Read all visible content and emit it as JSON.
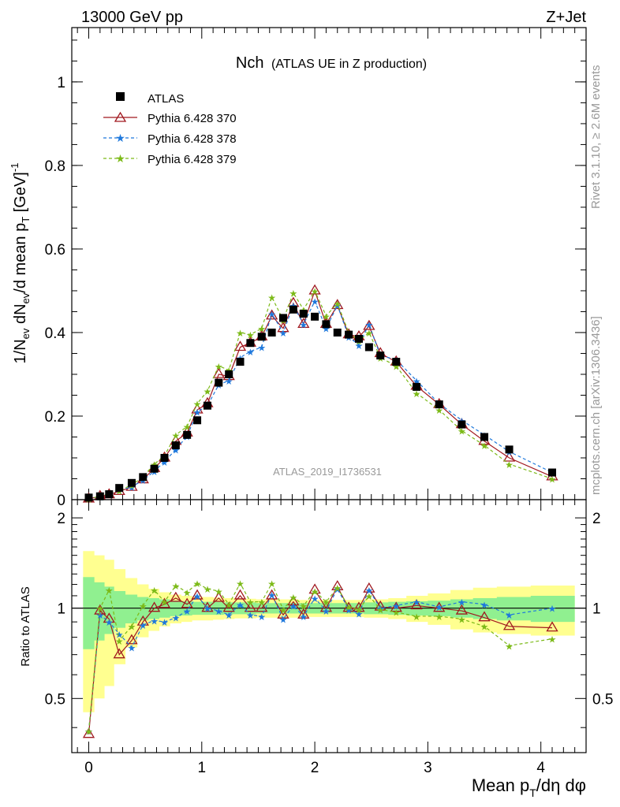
{
  "header": {
    "left": "13000 GeV pp",
    "right": "Z+Jet"
  },
  "side_labels": {
    "rivet": "Rivet 3.1.10, ≥ 2.6M events",
    "mcplots": "mcplots.cern.ch [arXiv:1306.3436]"
  },
  "colors": {
    "atlas": "#000000",
    "p370": "#a0181f",
    "p378": "#1e78dc",
    "p379": "#7cba18",
    "band_inner": "#90f090",
    "band_outer": "#ffff90",
    "watermark": "#999999"
  },
  "chart_data": [
    {
      "type": "scatter",
      "title": "Nch",
      "subtitle": "(ATLAS UE in Z production)",
      "analysis_label": "ATLAS_2019_I1736531",
      "ylabel": "1/N_ev dN_ev/d mean p_T [GeV]^-1",
      "xlim": [
        -0.15,
        4.4
      ],
      "ylim": [
        0,
        1.13
      ],
      "y_ticks": [
        "0",
        "0.2",
        "0.4",
        "0.6",
        "0.8",
        "1"
      ],
      "legend_position": "top-left",
      "x": [
        0.0,
        0.1,
        0.18,
        0.27,
        0.38,
        0.48,
        0.58,
        0.67,
        0.77,
        0.87,
        0.96,
        1.05,
        1.15,
        1.24,
        1.34,
        1.43,
        1.53,
        1.62,
        1.72,
        1.81,
        1.9,
        2.0,
        2.1,
        2.2,
        2.3,
        2.39,
        2.48,
        2.58,
        2.72,
        2.9,
        3.1,
        3.3,
        3.5,
        3.72,
        4.1
      ],
      "series": [
        {
          "name": "ATLAS",
          "marker": "square",
          "values": [
            0.005,
            0.008,
            0.013,
            0.028,
            0.04,
            0.054,
            0.074,
            0.1,
            0.13,
            0.155,
            0.19,
            0.225,
            0.28,
            0.3,
            0.33,
            0.375,
            0.39,
            0.4,
            0.435,
            0.455,
            0.445,
            0.438,
            0.42,
            0.4,
            0.395,
            0.385,
            0.365,
            0.345,
            0.33,
            0.27,
            0.228,
            0.18,
            0.15,
            0.12,
            0.065
          ]
        },
        {
          "name": "Pythia 6.428 370",
          "marker": "triangle",
          "values": [
            0.002,
            0.008,
            0.012,
            0.02,
            0.03,
            0.048,
            0.075,
            0.1,
            0.14,
            0.16,
            0.215,
            0.23,
            0.3,
            0.295,
            0.365,
            0.375,
            0.39,
            0.44,
            0.41,
            0.47,
            0.42,
            0.5,
            0.42,
            0.465,
            0.395,
            0.39,
            0.415,
            0.35,
            0.33,
            0.272,
            0.228,
            0.18,
            0.14,
            0.1,
            0.055
          ]
        },
        {
          "name": "Pythia 6.428 378",
          "marker": "star",
          "values": [
            0.002,
            0.007,
            0.012,
            0.023,
            0.03,
            0.047,
            0.068,
            0.091,
            0.12,
            0.152,
            0.21,
            0.225,
            0.275,
            0.285,
            0.34,
            0.355,
            0.365,
            0.445,
            0.4,
            0.465,
            0.42,
            0.475,
            0.41,
            0.465,
            0.39,
            0.37,
            0.42,
            0.345,
            0.335,
            0.285,
            0.23,
            0.19,
            0.155,
            0.115,
            0.065
          ]
        },
        {
          "name": "Pythia 6.428 379",
          "marker": "star",
          "values": [
            0.002,
            0.008,
            0.015,
            0.022,
            0.035,
            0.055,
            0.085,
            0.105,
            0.155,
            0.175,
            0.23,
            0.26,
            0.32,
            0.31,
            0.4,
            0.395,
            0.41,
            0.485,
            0.43,
            0.495,
            0.455,
            0.5,
            0.44,
            0.47,
            0.4,
            0.38,
            0.4,
            0.34,
            0.32,
            0.255,
            0.215,
            0.165,
            0.13,
            0.085,
            0.05
          ]
        }
      ]
    },
    {
      "type": "line",
      "ylabel": "Ratio to ATLAS",
      "xlabel": "Mean p_T/dη dφ",
      "xlim": [
        -0.15,
        4.4
      ],
      "ylim": [
        0.33,
        2.3
      ],
      "x_ticks": [
        "0",
        "1",
        "2",
        "3",
        "4"
      ],
      "y_ticks": [
        "0.5",
        "1",
        "2"
      ],
      "reference_line": 1,
      "x": [
        0.0,
        0.1,
        0.18,
        0.27,
        0.38,
        0.48,
        0.58,
        0.67,
        0.77,
        0.87,
        0.96,
        1.05,
        1.15,
        1.24,
        1.34,
        1.43,
        1.53,
        1.62,
        1.72,
        1.81,
        1.9,
        2.0,
        2.1,
        2.2,
        2.3,
        2.39,
        2.48,
        2.58,
        2.72,
        2.9,
        3.1,
        3.3,
        3.5,
        3.72,
        4.1
      ],
      "bands": {
        "inner_halfwidth": [
          0.27,
          0.22,
          0.18,
          0.14,
          0.11,
          0.09,
          0.08,
          0.07,
          0.06,
          0.055,
          0.05,
          0.05,
          0.05,
          0.045,
          0.045,
          0.045,
          0.04,
          0.04,
          0.04,
          0.04,
          0.04,
          0.04,
          0.04,
          0.04,
          0.04,
          0.04,
          0.045,
          0.045,
          0.05,
          0.055,
          0.06,
          0.07,
          0.08,
          0.09,
          0.1
        ],
        "outer_halfwidth": [
          0.55,
          0.5,
          0.45,
          0.35,
          0.26,
          0.2,
          0.16,
          0.13,
          0.11,
          0.1,
          0.09,
          0.09,
          0.085,
          0.08,
          0.075,
          0.075,
          0.07,
          0.07,
          0.07,
          0.07,
          0.065,
          0.065,
          0.065,
          0.065,
          0.065,
          0.065,
          0.07,
          0.07,
          0.08,
          0.1,
          0.12,
          0.15,
          0.17,
          0.18,
          0.19
        ]
      },
      "series": [
        {
          "name": "Pythia 6.428 370",
          "values": [
            0.38,
            0.98,
            0.92,
            0.7,
            0.78,
            0.9,
            1.0,
            1.03,
            1.08,
            1.03,
            1.1,
            1.0,
            1.08,
            1.0,
            1.1,
            1.0,
            1.0,
            1.1,
            0.95,
            1.05,
            0.95,
            1.15,
            1.0,
            1.18,
            1.0,
            1.0,
            1.16,
            1.01,
            1.0,
            1.02,
            1.0,
            0.98,
            0.93,
            0.87,
            0.86
          ]
        },
        {
          "name": "Pythia 6.428 378",
          "values": [
            0.39,
            0.95,
            0.9,
            0.82,
            0.74,
            0.88,
            0.91,
            0.9,
            0.93,
            0.98,
            1.1,
            1.0,
            0.98,
            0.95,
            1.03,
            0.95,
            0.94,
            1.11,
            0.92,
            1.02,
            0.94,
            1.08,
            0.98,
            1.16,
            0.99,
            0.96,
            1.15,
            1.0,
            1.02,
            1.05,
            1.01,
            1.05,
            1.03,
            0.95,
            1.0
          ]
        },
        {
          "name": "Pythia 6.428 379",
          "values": [
            0.39,
            1.0,
            1.15,
            0.78,
            0.87,
            1.02,
            1.15,
            1.05,
            1.19,
            1.13,
            1.21,
            1.16,
            1.14,
            1.03,
            1.21,
            1.05,
            1.05,
            1.21,
            0.99,
            1.09,
            1.02,
            1.14,
            1.05,
            1.17,
            1.01,
            0.99,
            1.1,
            0.99,
            0.97,
            0.94,
            0.94,
            0.92,
            0.87,
            0.75,
            0.79
          ]
        }
      ]
    }
  ]
}
